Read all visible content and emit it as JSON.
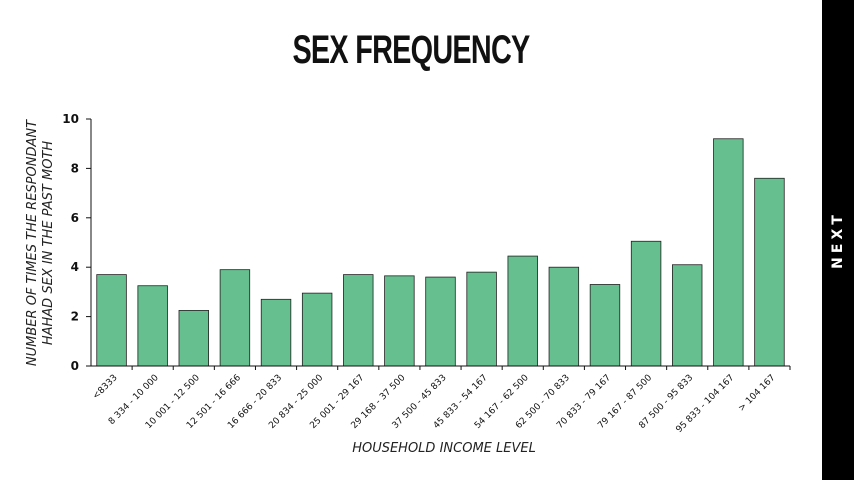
{
  "chart_data": {
    "type": "bar",
    "title": "SEX FREQUENCY",
    "xlabel": "HOUSEHOLD INCOME LEVEL",
    "ylabel_lines": [
      "NUMBER OF TIMES THE RESPONDANT",
      "HAHAD SEX IN THE PAST MOTH"
    ],
    "ylim": [
      0,
      10
    ],
    "yticks": [
      0,
      2,
      4,
      6,
      8,
      10
    ],
    "categories": [
      "<8333",
      "8 334 - 10 000",
      "10 001 - 12 500",
      "12 501 - 16 666",
      "16 666 - 20 833",
      "20 834 - 25 000",
      "25 001 - 29 167",
      "29 168 - 37 500",
      "37 500 - 45 833",
      "45 833 - 54 167",
      "54 167 - 62 500",
      "62 500 - 70 833",
      "70 833 - 79 167",
      "79 167 - 87 500",
      "87 500 - 95 833",
      "95 833 - 104 167",
      "> 104 167"
    ],
    "values": [
      3.7,
      3.25,
      2.25,
      3.9,
      2.7,
      2.95,
      3.7,
      3.65,
      3.6,
      3.8,
      4.45,
      4.0,
      3.3,
      5.05,
      4.1,
      9.2,
      7.6
    ],
    "bar_color": "#66bf8f",
    "grid": false
  },
  "nav": {
    "next_label": "NEXT"
  }
}
